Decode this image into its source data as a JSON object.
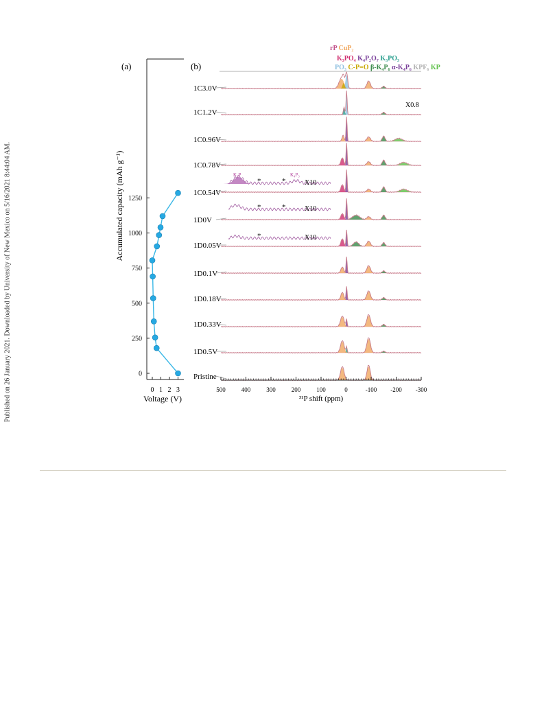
{
  "sidebar_note": "Published on 26 January 2021. Downloaded by University of New Mexico on 5/16/2021 8:44:04 AM.",
  "figure": {
    "panel_a_label": "(a)",
    "panel_b_label": "(b)",
    "panel_a": {
      "ylabel": "Accumulated capacity (mAh g⁻¹)",
      "xlabel": "Voltage (V)",
      "yticks": [
        "0",
        "250",
        "500",
        "750",
        "1000",
        "1250"
      ],
      "xticks": [
        "0",
        "1",
        "2",
        "3"
      ]
    },
    "panel_b": {
      "xlabel": "³¹P shift (ppm)",
      "xticks": [
        "500",
        "400",
        "300",
        "200",
        "100",
        "0",
        "-100",
        "-200",
        "-300"
      ],
      "legend_rows": [
        [
          {
            "text": "rP",
            "color": "#c0508a"
          },
          {
            "text": "CuP₂",
            "color": "#f0a860"
          }
        ],
        [
          {
            "text": "K₃PO₄",
            "color": "#d03070"
          },
          {
            "text": "K₄P₂O₇",
            "color": "#7a3f9a"
          },
          {
            "text": "K₃PO₃",
            "color": "#2a9f8f"
          }
        ],
        [
          {
            "text": "PO₃",
            "color": "#8fc0e0"
          },
          {
            "text": "C-P=O",
            "color": "#c8a800"
          },
          {
            "text": "β-K₄P₆",
            "color": "#3a8a4a"
          },
          {
            "text": "α-K₄P₆",
            "color": "#7a3f9a"
          },
          {
            "text": "KPF₆",
            "color": "#b0b0b0"
          },
          {
            "text": "KP",
            "color": "#5fc04a"
          }
        ]
      ],
      "scale_note": "X0.8",
      "inset_labels": {
        "k3p": "K₃P",
        "k4p3": "K₄P₃",
        "x10": "X10",
        "star": "*"
      }
    },
    "spectra": [
      {
        "label": "1C3.0V"
      },
      {
        "label": "1C1.2V"
      },
      {
        "label": "1C0.96V"
      },
      {
        "label": "1C0.78V"
      },
      {
        "label": "1C0.54V"
      },
      {
        "label": "1D0V"
      },
      {
        "label": "1D0.05V"
      },
      {
        "label": "1D0.1V"
      },
      {
        "label": "1D0.18V"
      },
      {
        "label": "1D0.33V"
      },
      {
        "label": "1D0.5V"
      },
      {
        "label": "Pristine"
      }
    ]
  },
  "chart_data": [
    {
      "type": "line",
      "xlabel": "Voltage (V)",
      "ylabel": "Accumulated capacity (mAh g⁻¹)",
      "xlim": [
        -0.3,
        3.2
      ],
      "ylim": [
        -50,
        1350
      ],
      "series": [
        {
          "x": [
            3.0,
            0.5,
            0.33,
            0.18,
            0.1,
            0.05,
            0.0,
            0.54,
            0.78,
            0.96,
            1.2,
            3.0
          ],
          "y": [
            0,
            180,
            255,
            370,
            535,
            690,
            805,
            905,
            985,
            1040,
            1120,
            1285
          ]
        }
      ]
    },
    {
      "type": "line",
      "xlabel": "³¹P shift (ppm)",
      "xlim": [
        500,
        -300
      ],
      "series": [
        {
          "name": "rP",
          "peaks": [
            -5
          ]
        },
        {
          "name": "CuP₂",
          "peaks": [
            15,
            -90
          ]
        }
      ]
    }
  ]
}
